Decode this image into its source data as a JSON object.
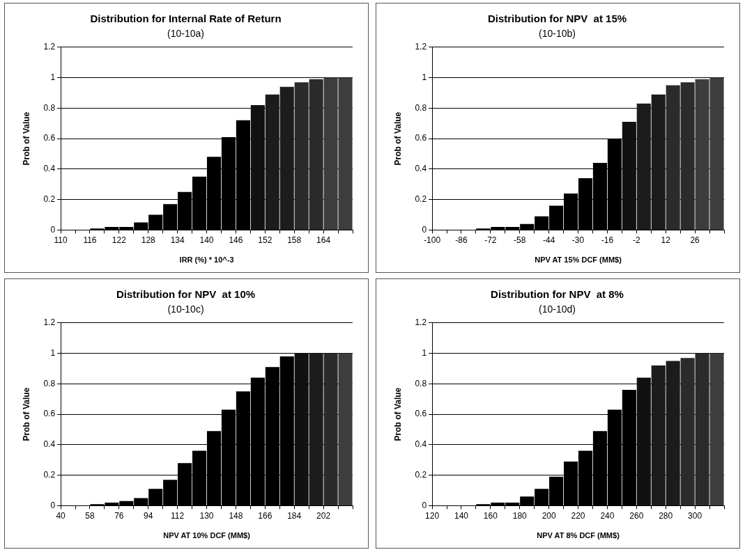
{
  "chart_data": [
    {
      "type": "histogram",
      "title": "Distribution for Internal Rate of Return",
      "subtitle": "(10-10a)",
      "xlabel": "IRR (%) * 10^-3",
      "ylabel": "Prob of Value",
      "bins": [
        110,
        113,
        116,
        119,
        122,
        125,
        128,
        131,
        134,
        137,
        140,
        143,
        146,
        149,
        152,
        155,
        158,
        161,
        164,
        167,
        170
      ],
      "values": [
        0,
        0,
        0.01,
        0.02,
        0.02,
        0.05,
        0.1,
        0.17,
        0.25,
        0.35,
        0.48,
        0.61,
        0.72,
        0.82,
        0.89,
        0.94,
        0.97,
        0.99,
        1,
        1
      ],
      "colors": [
        "#000000",
        "#000000",
        "#000000",
        "#000000",
        "#000000",
        "#000000",
        "#000000",
        "#000000",
        "#000000",
        "#000000",
        "#000000",
        "#000000",
        "#000000",
        "#111111",
        "#1c1c1c",
        "#1c1c1c",
        "#2b2b2b",
        "#2b2b2b",
        "#3d3d3d",
        "#3d3d3d"
      ],
      "xlim": [
        110,
        170
      ],
      "xticks": [
        110,
        {
          "value": 113,
          "label": null
        },
        116,
        {
          "value": 119,
          "label": null
        },
        122,
        {
          "value": 125,
          "label": null
        },
        128,
        {
          "value": 131,
          "label": null
        },
        134,
        {
          "value": 137,
          "label": null
        },
        140,
        {
          "value": 143,
          "label": null
        },
        146,
        {
          "value": 149,
          "label": null
        },
        152,
        {
          "value": 155,
          "label": null
        },
        158,
        {
          "value": 161,
          "label": null
        },
        164,
        {
          "value": 167,
          "label": null
        },
        {
          "value": 170,
          "label": null
        }
      ],
      "ylim": [
        0,
        1.2
      ],
      "yticks": [
        0,
        0.2,
        0.4,
        0.6,
        0.8,
        1,
        1.2
      ],
      "grid": "y",
      "legend": false
    },
    {
      "type": "histogram",
      "title": "Distribution for NPV  at 15%",
      "subtitle": "(10-10b)",
      "xlabel": "NPV AT 15% DCF (MM$)",
      "ylabel": "Prob of Value",
      "bins": [
        -100,
        -93,
        -86,
        -79,
        -72,
        -65,
        -58,
        -51,
        -44,
        -37,
        -30,
        -23,
        -16,
        -9,
        -2,
        5,
        12,
        19,
        26,
        33,
        40
      ],
      "values": [
        0,
        0,
        0,
        0.01,
        0.02,
        0.02,
        0.04,
        0.09,
        0.16,
        0.24,
        0.34,
        0.44,
        0.6,
        0.71,
        0.83,
        0.89,
        0.95,
        0.97,
        0.99,
        1
      ],
      "colors": [
        "#000000",
        "#000000",
        "#000000",
        "#000000",
        "#000000",
        "#000000",
        "#000000",
        "#000000",
        "#000000",
        "#000000",
        "#000000",
        "#000000",
        "#000000",
        "#111111",
        "#1c1c1c",
        "#1c1c1c",
        "#2b2b2b",
        "#2b2b2b",
        "#3d3d3d",
        "#3d3d3d"
      ],
      "xlim": [
        -100,
        40
      ],
      "xticks": [
        -100,
        {
          "value": -93,
          "label": null
        },
        -86,
        {
          "value": -79,
          "label": null
        },
        -72,
        {
          "value": -65,
          "label": null
        },
        -58,
        {
          "value": -51,
          "label": null
        },
        -44,
        {
          "value": -37,
          "label": null
        },
        -30,
        {
          "value": -23,
          "label": null
        },
        -16,
        {
          "value": -9,
          "label": null
        },
        -2,
        {
          "value": 5,
          "label": null
        },
        12,
        {
          "value": 19,
          "label": null
        },
        26,
        {
          "value": 33,
          "label": null
        },
        {
          "value": 40,
          "label": null
        }
      ],
      "ylim": [
        0,
        1.2
      ],
      "yticks": [
        0,
        0.2,
        0.4,
        0.6,
        0.8,
        1,
        1.2
      ],
      "grid": "y",
      "legend": false
    },
    {
      "type": "histogram",
      "title": "Distribution for NPV  at 10%",
      "subtitle": "(10-10c)",
      "xlabel": "NPV AT 10% DCF (MM$)",
      "ylabel": "Prob of Value",
      "bins": [
        40,
        49,
        58,
        67,
        76,
        85,
        94,
        103,
        112,
        121,
        130,
        139,
        148,
        157,
        166,
        175,
        184,
        193,
        202,
        211,
        220
      ],
      "values": [
        0,
        0,
        0.01,
        0.02,
        0.03,
        0.05,
        0.11,
        0.17,
        0.28,
        0.36,
        0.49,
        0.63,
        0.75,
        0.84,
        0.91,
        0.98,
        1,
        1,
        1,
        1
      ],
      "colors": [
        "#000000",
        "#000000",
        "#000000",
        "#000000",
        "#000000",
        "#000000",
        "#000000",
        "#000000",
        "#000000",
        "#000000",
        "#000000",
        "#000000",
        "#000000",
        "#000000",
        "#000000",
        "#000000",
        "#111111",
        "#1c1c1c",
        "#2b2b2b",
        "#3d3d3d"
      ],
      "xlim": [
        40,
        220
      ],
      "xticks": [
        40,
        {
          "value": 49,
          "label": null
        },
        58,
        {
          "value": 67,
          "label": null
        },
        76,
        {
          "value": 85,
          "label": null
        },
        94,
        {
          "value": 103,
          "label": null
        },
        112,
        {
          "value": 121,
          "label": null
        },
        130,
        {
          "value": 139,
          "label": null
        },
        148,
        {
          "value": 157,
          "label": null
        },
        166,
        {
          "value": 175,
          "label": null
        },
        184,
        {
          "value": 193,
          "label": null
        },
        202,
        {
          "value": 211,
          "label": null
        },
        {
          "value": 220,
          "label": null
        }
      ],
      "ylim": [
        0,
        1.2
      ],
      "yticks": [
        0,
        0.2,
        0.4,
        0.6,
        0.8,
        1,
        1.2
      ],
      "grid": "y",
      "legend": false
    },
    {
      "type": "histogram",
      "title": "Distribution for NPV  at 8%",
      "subtitle": "(10-10d)",
      "xlabel": "NPV AT 8% DCF (MM$)",
      "ylabel": "Prob of Value",
      "bins": [
        120,
        130,
        140,
        150,
        160,
        170,
        180,
        190,
        200,
        210,
        220,
        230,
        240,
        250,
        260,
        270,
        280,
        290,
        300,
        310,
        320
      ],
      "values": [
        0,
        0,
        0,
        0.01,
        0.02,
        0.02,
        0.06,
        0.11,
        0.19,
        0.29,
        0.36,
        0.49,
        0.63,
        0.76,
        0.84,
        0.92,
        0.95,
        0.97,
        1,
        1
      ],
      "colors": [
        "#000000",
        "#000000",
        "#000000",
        "#000000",
        "#000000",
        "#000000",
        "#000000",
        "#000000",
        "#000000",
        "#000000",
        "#000000",
        "#000000",
        "#000000",
        "#000000",
        "#111111",
        "#1c1c1c",
        "#1c1c1c",
        "#2b2b2b",
        "#2b2b2b",
        "#3d3d3d"
      ],
      "xlim": [
        120,
        320
      ],
      "xticks": [
        120,
        {
          "value": 130,
          "label": null
        },
        140,
        {
          "value": 150,
          "label": null
        },
        160,
        {
          "value": 170,
          "label": null
        },
        180,
        {
          "value": 190,
          "label": null
        },
        200,
        {
          "value": 210,
          "label": null
        },
        220,
        {
          "value": 230,
          "label": null
        },
        240,
        {
          "value": 250,
          "label": null
        },
        260,
        {
          "value": 270,
          "label": null
        },
        280,
        {
          "value": 290,
          "label": null
        },
        300,
        {
          "value": 310,
          "label": null
        },
        {
          "value": 320,
          "label": null
        }
      ],
      "ylim": [
        0,
        1.2
      ],
      "yticks": [
        0,
        0.2,
        0.4,
        0.6,
        0.8,
        1,
        1.2
      ],
      "grid": "y",
      "legend": false
    }
  ]
}
